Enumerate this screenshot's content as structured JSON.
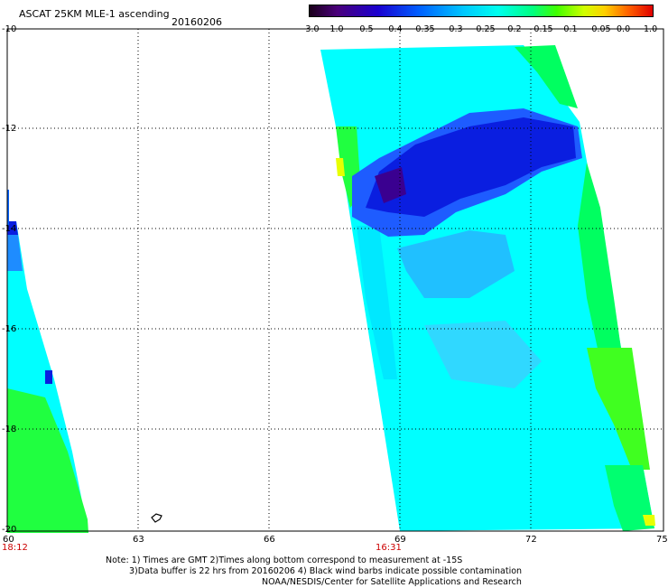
{
  "header": {
    "title": "ASCAT 25KM MLE-1 ascending",
    "date": "20160206"
  },
  "colorbar": {
    "labels": [
      "-3.0",
      "-1.0",
      "-0.5",
      "-0.4",
      "-0.35",
      "-0.3",
      "-0.25",
      "-0.2",
      "-0.15",
      "-0.1",
      "-0.05",
      "0.0",
      "1.0"
    ]
  },
  "axes": {
    "y_labels": [
      "-10",
      "-12",
      "-14",
      "-16",
      "-18",
      "-20"
    ],
    "x_labels": [
      "60",
      "63",
      "66",
      "69",
      "72",
      "75"
    ],
    "times": [
      "18:12",
      "16:31"
    ]
  },
  "colors": {
    "deep_blue": "#0000d0",
    "blue": "#1e5cff",
    "cyan": "#00ffff",
    "green": "#00ff60",
    "time_red": "#cc0000"
  },
  "notes": {
    "line1": "Note: 1) Times are GMT 2)Times along bottom correspond to measurement at -15S",
    "line2": "3)Data buffer is 22 hrs from 20160206 4) Black wind barbs indicate possible contamination",
    "line3": "NOAA/NESDIS/Center for Satellite Applications and Research"
  }
}
